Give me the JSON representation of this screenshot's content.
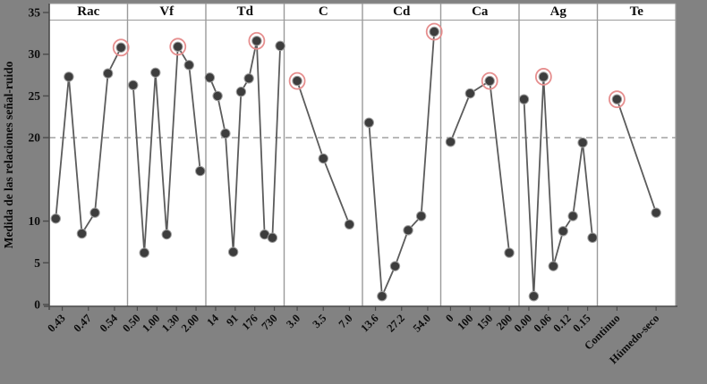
{
  "figure": {
    "background": "#828282",
    "plot_background": "#ffffff",
    "accent_circle_color": "#e68f8f",
    "point_color": "#3d3d3d",
    "point_ring_color": "#9e9e9e",
    "line_color": "#5c5c5c",
    "divider_color": "#9b9b9b",
    "axis_color": "#4a4a4a",
    "reference_line_color": "#9a9a9a",
    "text_color": "#0d0d0d"
  },
  "chart_data": {
    "type": "line",
    "title": "",
    "ylabel": "Medida de las relaciones señal-ruido",
    "xlabel": "",
    "ylim": [
      0,
      35
    ],
    "yticks": [
      35,
      30,
      25,
      20,
      10,
      5,
      0
    ],
    "reference_line": 20,
    "grid": false,
    "legend_position": "none",
    "highlight_style": "red circle marks best S/N point in each panel",
    "panels": [
      {
        "factor": "Rac",
        "levels": [
          "0.43",
          "0.47",
          "0.54"
        ],
        "values": [
          10.3,
          27.3,
          8.5,
          11.0,
          27.7,
          30.8
        ],
        "circled_index": 5
      },
      {
        "factor": "Vf",
        "levels": [
          "0.50",
          "1.00",
          "1.30",
          "2.00"
        ],
        "values": [
          26.3,
          6.2,
          27.8,
          8.4,
          30.9,
          28.7,
          16.0
        ],
        "circled_index": 4
      },
      {
        "factor": "Td",
        "levels": [
          "14",
          "91",
          "176",
          "730"
        ],
        "values": [
          27.2,
          25.0,
          20.5,
          6.3,
          25.5,
          27.1,
          31.6,
          8.4,
          8.0,
          31.0
        ],
        "circled_index": 6
      },
      {
        "factor": "C",
        "levels": [
          "3.0",
          "3.5",
          "7.0"
        ],
        "values": [
          26.8,
          17.5,
          9.6
        ],
        "circled_index": 0
      },
      {
        "factor": "Cd",
        "levels": [
          "13.6",
          "27.2",
          "54.0"
        ],
        "values": [
          21.8,
          1.0,
          4.6,
          8.9,
          10.6,
          32.7
        ],
        "circled_index": 5
      },
      {
        "factor": "Ca",
        "levels": [
          "0",
          "100",
          "150",
          "200"
        ],
        "values": [
          19.5,
          25.3,
          26.8,
          6.2
        ],
        "circled_index": 2
      },
      {
        "factor": "Ag",
        "levels": [
          "0.00",
          "0.06",
          "0.12",
          "0.15"
        ],
        "values": [
          24.6,
          1.0,
          27.3,
          4.6,
          8.8,
          10.6,
          19.4,
          8.0
        ],
        "circled_index": 2
      },
      {
        "factor": "Te",
        "levels": [
          "Continuo",
          "Húmedo-seco"
        ],
        "values": [
          24.6,
          11.0
        ],
        "circled_index": 0
      }
    ]
  }
}
